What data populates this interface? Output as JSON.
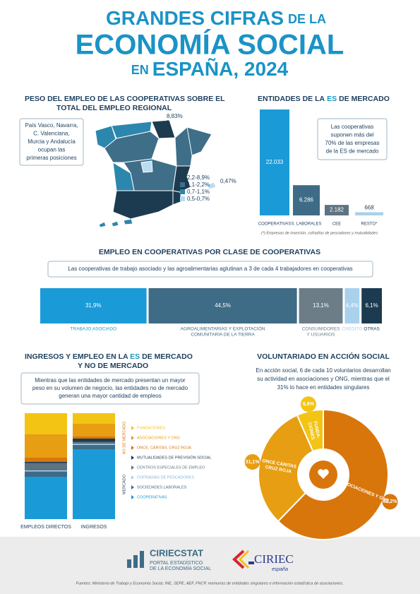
{
  "header": {
    "line1a": "GRANDES CIFRAS",
    "line1b": "DE LA",
    "line2": "ECONOMÍA SOCIAL",
    "line3a": "EN",
    "line3b": "ESPAÑA, 2024"
  },
  "map_section": {
    "title": [
      "PESO DEL EMPLEO DE LAS COOPERATIVAS SOBRE EL",
      "TOTAL DEL EMPLEO REGIONAL"
    ],
    "note": [
      "País Vasco, Navarra,",
      "C. Valenciana,",
      "Murcia y Andalucía",
      "ocupan las",
      "primeras posiciones"
    ],
    "max_label": "8,83%",
    "min_label": "0,47%",
    "legend": [
      {
        "label": "2,2-8,9%",
        "color": "#1c3b50"
      },
      {
        "label": "1,1-2,2%",
        "color": "#3f6e88"
      },
      {
        "label": "0,7-1,1%",
        "color": "#2b87ad"
      },
      {
        "label": "0,5-0,7%",
        "color": "#b9dcf1"
      }
    ]
  },
  "entities_chart": {
    "type": "bar",
    "title": {
      "a": "ENTIDADES DE LA",
      "b": "ES",
      "c": "DE MERCADO"
    },
    "categories": [
      "COOPERATIVAS",
      "S. LABORALES",
      "CEE",
      "RESTO*"
    ],
    "values": [
      22033,
      6286,
      2182,
      668
    ],
    "value_labels": [
      "22.033",
      "6.286",
      "2.182",
      "668"
    ],
    "colors": [
      "#1a9bd7",
      "#3e6b86",
      "#5d7381",
      "#a9d1ec"
    ],
    "note": [
      "Las cooperativas",
      "suponen más del",
      "70% de las empresas",
      "de la ES de mercado"
    ],
    "footnote": "(*) Empresas de inserción, cofradías de pescadores y mutualidades"
  },
  "class_chart": {
    "type": "stacked-bar",
    "title": "EMPLEO EN COOPERATIVAS POR CLASE DE COOPERATIVAS",
    "note": "Las cooperativas de trabajo asociado y las agroalimentarias aglutinan a 3 de cada 4 trabajadores en cooperativas",
    "categories": [
      [
        "TRABAJO ASOCIADO"
      ],
      [
        "AGROALIMENTARIAS Y EXPLOTACIÓN",
        "COMUNITARIA DE LA TIERRA"
      ],
      [
        "CONSUMIDORES",
        "Y USUARIOS"
      ],
      [
        "CRÉDITO"
      ],
      [
        "OTRAS"
      ]
    ],
    "values": [
      31.9,
      44.5,
      13.1,
      4.4,
      6.1
    ],
    "value_labels": [
      "31,9%",
      "44,5%",
      "13,1%",
      "4,4%",
      "6,1%"
    ],
    "colors": [
      "#1a9bd7",
      "#3e6b86",
      "#6c7d88",
      "#a9d1ec",
      "#1c3b50"
    ]
  },
  "revenue_chart": {
    "type": "stacked-bar",
    "title": [
      {
        "a": "INGRESOS Y EMPLEO EN LA ",
        "b": "ES",
        "c": " DE MERCADO"
      },
      {
        "a": "Y NO DE MERCADO"
      }
    ],
    "note": [
      "Mientras que las entidades de mercado presentan un mayor",
      "peso en su volumen de negocio, las entidades no de mercado",
      "generan una mayor cantidad de empleos"
    ],
    "categories": [
      "EMPLEOS DIRECTOS",
      "INGRESOS"
    ],
    "group_labels": [
      "NO DE MERCADO",
      "MERCADO"
    ],
    "series": [
      {
        "name": "FUNDACIONES",
        "color": "#f3c414",
        "values": [
          20,
          10
        ]
      },
      {
        "name": "ASOCIACIONES Y ONG",
        "color": "#e79e12",
        "values": [
          22,
          12
        ]
      },
      {
        "name": "ONCE, CÁRITAS, CRUZ ROJA",
        "color": "#d8760c",
        "values": [
          4,
          2
        ]
      },
      {
        "name": "MUTUALIDADES DE PREVISIÓN SOCIAL",
        "color": "#1c3b50",
        "values": [
          1,
          3
        ]
      },
      {
        "name": "CENTROS ESPECIALES DE EMPLEO",
        "color": "#5d7381",
        "values": [
          7,
          2
        ]
      },
      {
        "name": "COFRADÍAS DE PESCADORES",
        "color": "#a9d1ec",
        "values": [
          1,
          1
        ]
      },
      {
        "name": "SOCIEDADES LABORALES",
        "color": "#3e6b86",
        "values": [
          5,
          4
        ]
      },
      {
        "name": "COOPERATIVAS",
        "color": "#1a9bd7",
        "values": [
          40,
          66
        ]
      }
    ]
  },
  "volunteer_chart": {
    "type": "donut",
    "title": "VOLUNTARIADO EN ACCIÓN SOCIAL",
    "note": [
      "En acción social, 6 de cada 10 voluntarios desarrollan",
      "su actividad en asociaciones y ONG, mientras que el",
      "31% lo hace en entidades singulares"
    ],
    "categories": [
      [
        "ASOCIACIONES Y ONG"
      ],
      [
        "ONCE CÁRITAS",
        "CRUZ ROJA"
      ],
      [
        "FUNDA-",
        "CIONES"
      ]
    ],
    "values": [
      62.2,
      31.1,
      6.6
    ],
    "value_labels": [
      "62,2%",
      "31,1%",
      "6,6%"
    ],
    "colors": [
      "#d8760c",
      "#e79e12",
      "#f3c414"
    ]
  },
  "footer": {
    "brand1": "CIRIECSTAT",
    "brand1_sub": [
      "PORTAL ESTADÍSTICO",
      "DE LA ECONOMÍA SOCIAL"
    ],
    "brand2": "CIRIEC",
    "brand2_sub": "españa",
    "sources": "Fuentes: Ministerio de Trabajo y Economía Social, INE, SEPE, AEF, FNCP, memorias de entidades singulares e información estadística de asociaciones."
  }
}
